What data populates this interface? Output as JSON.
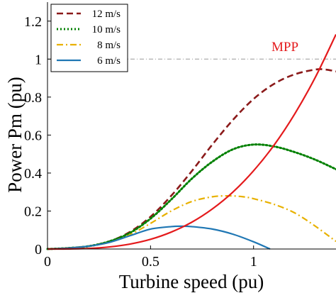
{
  "chart_data": {
    "type": "line",
    "xlabel": "Turbine speed (pu)",
    "ylabel": "Power Pm (pu)",
    "xlim": [
      0,
      1.4
    ],
    "ylim": [
      0,
      1.3
    ],
    "xticks": [
      "0",
      "0.5",
      "1"
    ],
    "yticks": [
      "0",
      "0.2",
      "0.4",
      "0.6",
      "0.8",
      "1",
      "1.2"
    ],
    "grid": false,
    "legend_position": "top-left",
    "reference_line": {
      "y": 1.0,
      "style": "dash-dot",
      "color": "#999999"
    },
    "annotations": [
      {
        "text": "MPP",
        "color": "#e41a1c"
      }
    ],
    "series": [
      {
        "name": "12 m/s",
        "color": "#8b1a1a",
        "dash": "dashed",
        "x": [
          0,
          0.1,
          0.2,
          0.3,
          0.4,
          0.5,
          0.6,
          0.7,
          0.8,
          0.9,
          1.0,
          1.1,
          1.2,
          1.3,
          1.35,
          1.4
        ],
        "y": [
          0.0,
          0.005,
          0.015,
          0.04,
          0.09,
          0.17,
          0.28,
          0.41,
          0.55,
          0.68,
          0.79,
          0.87,
          0.92,
          0.945,
          0.945,
          0.935
        ]
      },
      {
        "name": "10 m/s",
        "color": "#008000",
        "dash": "dotted",
        "x": [
          0,
          0.1,
          0.2,
          0.3,
          0.4,
          0.5,
          0.6,
          0.7,
          0.8,
          0.9,
          1.0,
          1.1,
          1.2,
          1.3,
          1.4
        ],
        "y": [
          0.0,
          0.005,
          0.015,
          0.04,
          0.085,
          0.16,
          0.26,
          0.37,
          0.46,
          0.525,
          0.55,
          0.54,
          0.51,
          0.47,
          0.42
        ]
      },
      {
        "name": "8 m/s",
        "color": "#e8b100",
        "dash": "dashdot",
        "x": [
          0,
          0.1,
          0.2,
          0.3,
          0.4,
          0.5,
          0.6,
          0.7,
          0.8,
          0.88,
          0.95,
          1.0,
          1.1,
          1.2,
          1.3,
          1.4
        ],
        "y": [
          0.0,
          0.005,
          0.015,
          0.035,
          0.075,
          0.135,
          0.2,
          0.25,
          0.275,
          0.28,
          0.275,
          0.265,
          0.235,
          0.19,
          0.12,
          0.04
        ]
      },
      {
        "name": "6 m/s",
        "color": "#1f77b4",
        "dash": "solid",
        "x": [
          0,
          0.1,
          0.2,
          0.3,
          0.4,
          0.5,
          0.6,
          0.65,
          0.7,
          0.8,
          0.9,
          1.0,
          1.08
        ],
        "y": [
          0.0,
          0.005,
          0.015,
          0.035,
          0.07,
          0.105,
          0.118,
          0.12,
          0.118,
          0.105,
          0.078,
          0.038,
          0.0
        ]
      },
      {
        "name": "MPP",
        "color": "#e41a1c",
        "dash": "solid",
        "x": [
          0,
          0.1,
          0.2,
          0.3,
          0.4,
          0.5,
          0.6,
          0.7,
          0.8,
          0.9,
          1.0,
          1.1,
          1.2,
          1.3,
          1.4
        ],
        "y": [
          0.0,
          0.0004,
          0.003,
          0.011,
          0.026,
          0.051,
          0.089,
          0.141,
          0.211,
          0.3,
          0.412,
          0.548,
          0.712,
          0.905,
          1.13
        ]
      }
    ],
    "legend_entries": [
      "12 m/s",
      "10 m/s",
      "8 m/s",
      "6 m/s"
    ]
  }
}
